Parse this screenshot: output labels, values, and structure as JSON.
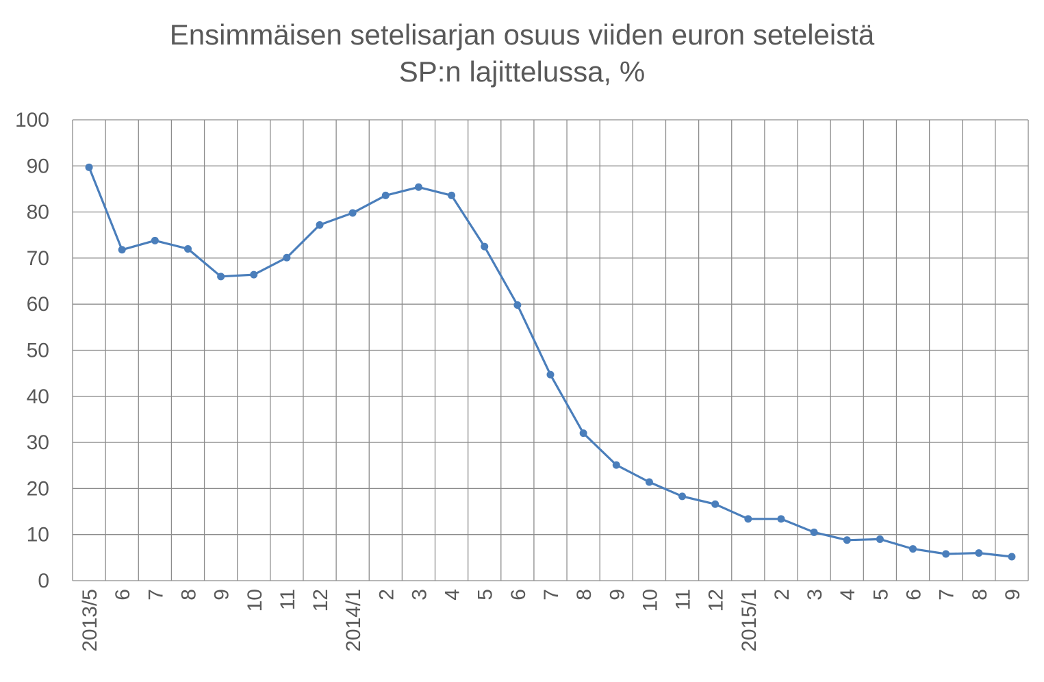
{
  "chart_data": {
    "type": "line",
    "title_line1": "Ensimmäisen setelisarjan osuus viiden euron seteleistä",
    "title_line2": "SP:n lajittelussa, %",
    "xlabel": "",
    "ylabel": "",
    "ylim": [
      0,
      100
    ],
    "ytick_step": 10,
    "grid": true,
    "line_color": "#4a7ebb",
    "grid_color": "#8c8c8c",
    "categories": [
      "2013/5",
      "6",
      "7",
      "8",
      "9",
      "10",
      "11",
      "12",
      "2014/1",
      "2",
      "3",
      "4",
      "5",
      "6",
      "7",
      "8",
      "9",
      "10",
      "11",
      "12",
      "2015/1",
      "2",
      "3",
      "4",
      "5",
      "6",
      "7",
      "8",
      "9"
    ],
    "values": [
      89.7,
      71.8,
      73.8,
      72.0,
      66.0,
      66.4,
      70.1,
      77.2,
      79.8,
      83.6,
      85.4,
      83.6,
      72.5,
      59.8,
      44.7,
      32.0,
      25.1,
      21.4,
      18.3,
      16.6,
      13.4,
      13.4,
      10.5,
      8.8,
      9.0,
      6.9,
      5.8,
      6.0,
      5.2
    ]
  }
}
